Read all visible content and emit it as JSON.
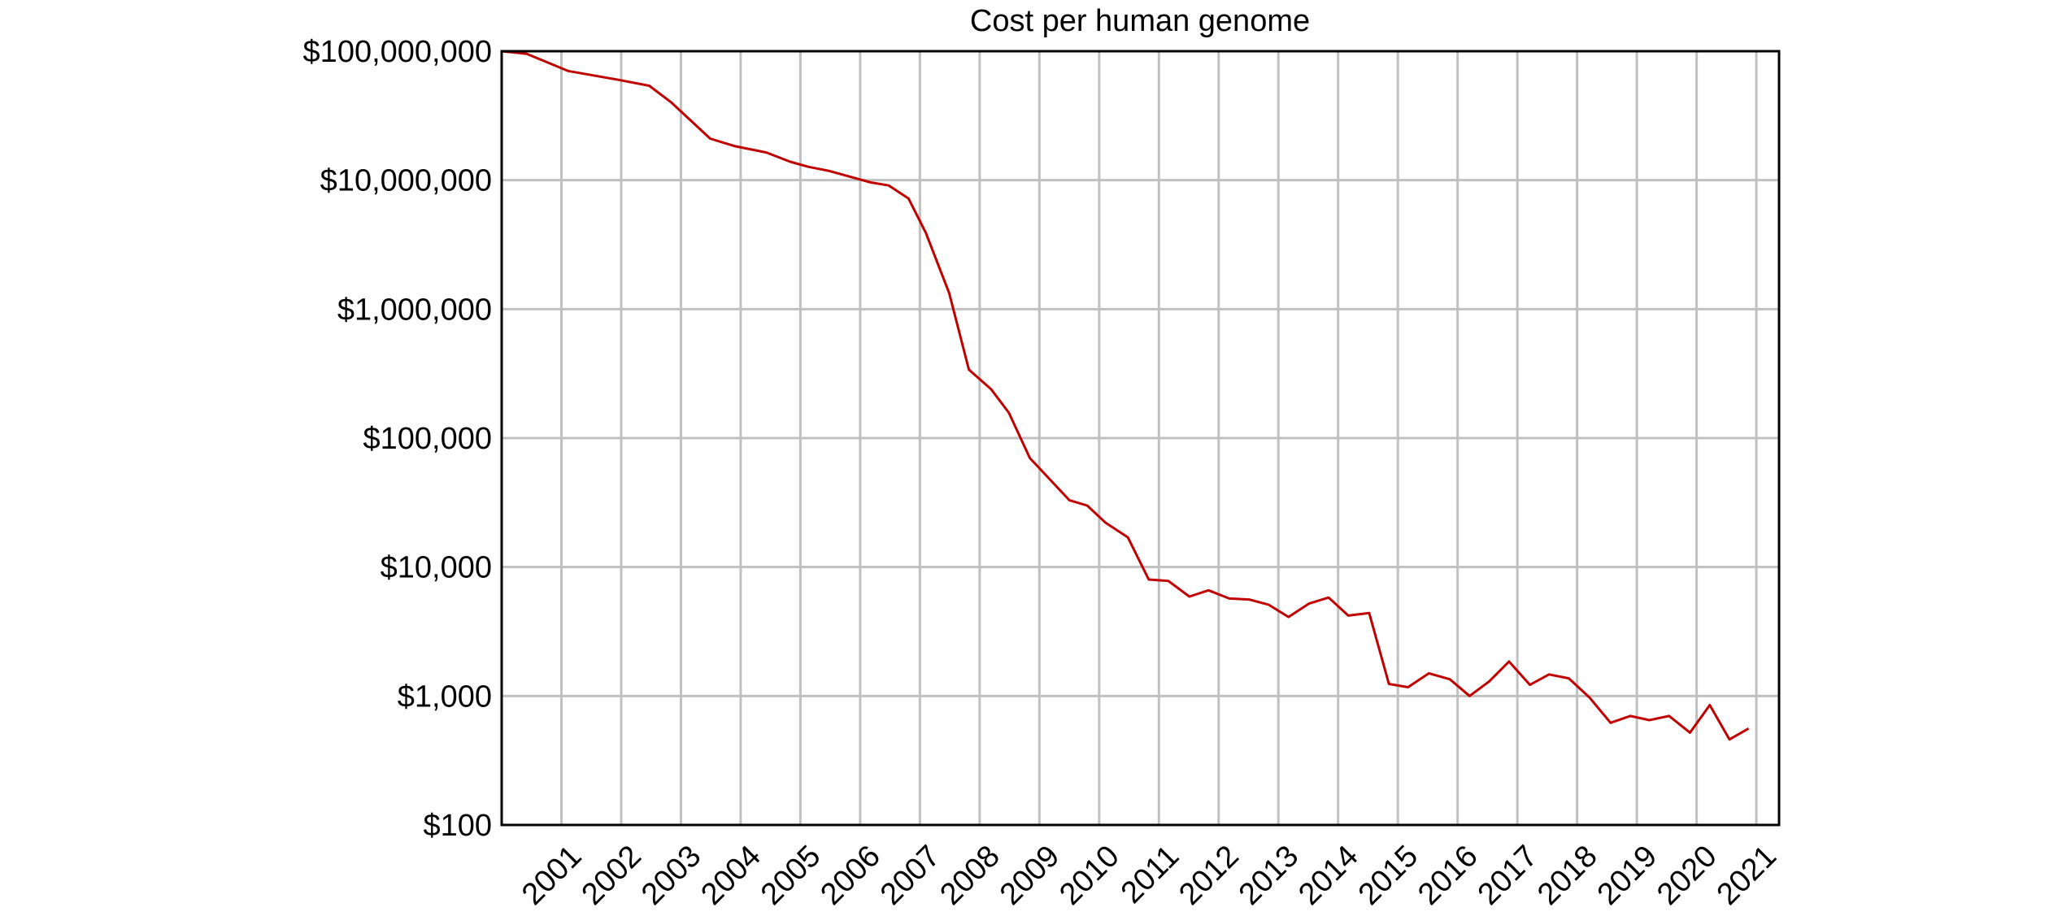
{
  "chart_data": {
    "type": "line",
    "title": "Cost per human genome",
    "xlabel": "",
    "ylabel": "",
    "yscale": "log",
    "ylim": [
      100,
      100000000
    ],
    "xlim": [
      2000.0,
      2021.38
    ],
    "grid": true,
    "line_color": "#c00000",
    "y_ticks": [
      {
        "value": 100,
        "label": "$100"
      },
      {
        "value": 1000,
        "label": "$1,000"
      },
      {
        "value": 10000,
        "label": "$10,000"
      },
      {
        "value": 100000,
        "label": "$100,000"
      },
      {
        "value": 1000000,
        "label": "$1,000,000"
      },
      {
        "value": 10000000,
        "label": "$10,000,000"
      },
      {
        "value": 100000000,
        "label": "$100,000,000"
      }
    ],
    "x_ticks": [
      "2001",
      "2002",
      "2003",
      "2004",
      "2005",
      "2006",
      "2007",
      "2008",
      "2009",
      "2010",
      "2011",
      "2012",
      "2013",
      "2014",
      "2015",
      "2016",
      "2017",
      "2018",
      "2019",
      "2020",
      "2021"
    ],
    "series": [
      {
        "name": "Cost per human genome",
        "x": [
          2000.0,
          2000.42,
          2001.11,
          2001.99,
          2002.47,
          2002.84,
          2003.49,
          2003.89,
          2004.43,
          2004.83,
          2005.13,
          2005.48,
          2006.18,
          2006.48,
          2006.81,
          2007.1,
          2007.49,
          2007.82,
          2008.19,
          2008.49,
          2008.84,
          2009.5,
          2009.8,
          2010.11,
          2010.48,
          2010.83,
          2011.16,
          2011.51,
          2011.83,
          2012.18,
          2012.51,
          2012.84,
          2013.17,
          2013.51,
          2013.84,
          2014.17,
          2014.52,
          2014.85,
          2015.17,
          2015.52,
          2015.87,
          2016.2,
          2016.53,
          2016.86,
          2017.21,
          2017.53,
          2017.86,
          2018.21,
          2018.56,
          2018.89,
          2019.21,
          2019.54,
          2019.89,
          2020.22,
          2020.55,
          2020.87
        ],
        "values": [
          100000000,
          95300000,
          70300000,
          59600000,
          54000000,
          40000000,
          21000000,
          18400000,
          16400000,
          13900000,
          12700000,
          11800000,
          9600000,
          9100000,
          7200000,
          3900000,
          1330000,
          340000,
          240000,
          157000,
          70000,
          33000,
          30000,
          22000,
          17000,
          8000,
          7800,
          5900,
          6600,
          5700,
          5600,
          5100,
          4100,
          5200,
          5800,
          4200,
          4400,
          1240,
          1170,
          1500,
          1350,
          1000,
          1300,
          1850,
          1220,
          1470,
          1370,
          970,
          620,
          700,
          650,
          700,
          520,
          850,
          460,
          560
        ]
      }
    ]
  }
}
